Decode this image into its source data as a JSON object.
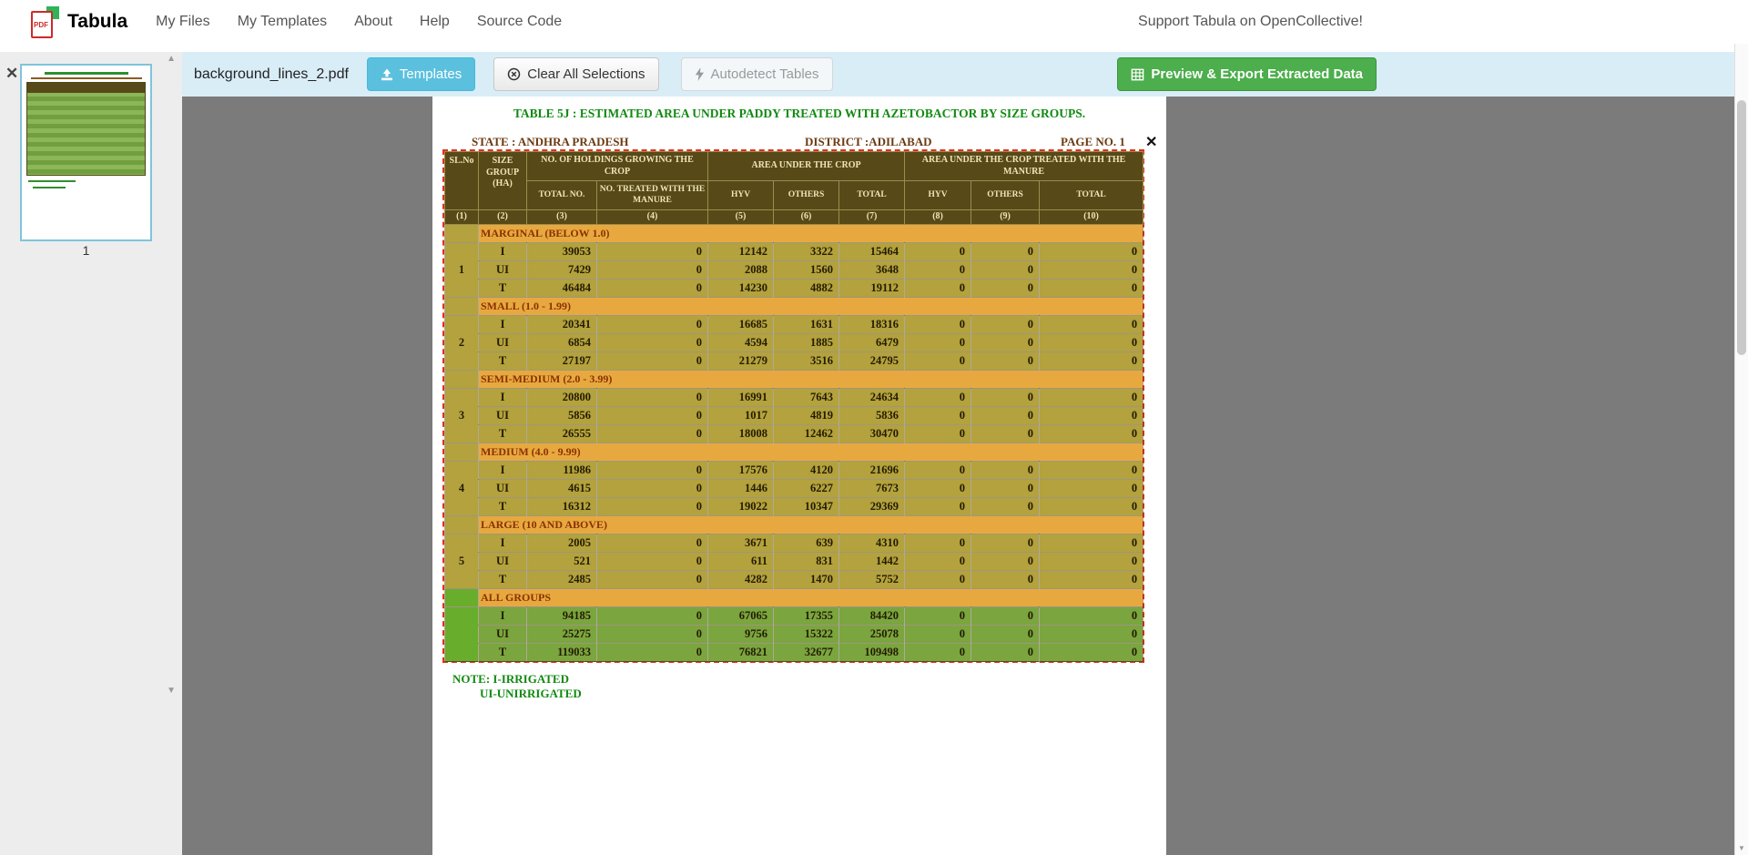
{
  "navbar": {
    "brand": "Tabula",
    "logo_pdf_text": "PDF",
    "items": [
      {
        "label": "My Files"
      },
      {
        "label": "My Templates"
      },
      {
        "label": "About"
      },
      {
        "label": "Help"
      },
      {
        "label": "Source Code"
      }
    ],
    "support_link": "Support Tabula on OpenCollective!"
  },
  "toolbar": {
    "filename": "background_lines_2.pdf",
    "templates": "Templates",
    "clear": "Clear All Selections",
    "autodetect": "Autodetect Tables",
    "export": "Preview & Export Extracted Data"
  },
  "sidebar": {
    "page_number": "1"
  },
  "document": {
    "title": "TABLE 5J : ESTIMATED AREA UNDER PADDY TREATED WITH AZETOBACTOR BY SIZE GROUPS.",
    "state_label": "STATE :",
    "state_value": "ANDHRA PRADESH",
    "district_label": "DISTRICT :",
    "district_value": "ADILABAD",
    "page_no": "PAGE NO. 1",
    "close_selection": "✕",
    "note1": "NOTE: I-IRRIGATED",
    "note2": "UI-UNIRRIGATED"
  },
  "table": {
    "headers": {
      "slno": "SL.No",
      "size_group": "SIZE GROUP (HA)",
      "holdings": "NO. OF HOLDINGS GROWING THE CROP",
      "area": "AREA UNDER THE CROP",
      "area_treated": "AREA UNDER THE CROP TREATED WITH THE MANURE",
      "total_no": "TOTAL NO.",
      "no_treated": "NO. TREATED WITH THE MANURE",
      "hyv": "HYV",
      "others": "OTHERS",
      "total": "TOTAL"
    },
    "col_numbers": [
      "(1)",
      "(2)",
      "(3)",
      "(4)",
      "(5)",
      "(6)",
      "(7)",
      "(8)",
      "(9)",
      "(10)"
    ],
    "groups": [
      {
        "slno": "1",
        "name": "MARGINAL (BELOW 1.0)",
        "rows": [
          {
            "label": "I",
            "values": [
              "39053",
              "0",
              "12142",
              "3322",
              "15464",
              "0",
              "0",
              "0"
            ]
          },
          {
            "label": "UI",
            "values": [
              "7429",
              "0",
              "2088",
              "1560",
              "3648",
              "0",
              "0",
              "0"
            ]
          },
          {
            "label": "T",
            "values": [
              "46484",
              "0",
              "14230",
              "4882",
              "19112",
              "0",
              "0",
              "0"
            ]
          }
        ]
      },
      {
        "slno": "2",
        "name": "SMALL (1.0 - 1.99)",
        "rows": [
          {
            "label": "I",
            "values": [
              "20341",
              "0",
              "16685",
              "1631",
              "18316",
              "0",
              "0",
              "0"
            ]
          },
          {
            "label": "UI",
            "values": [
              "6854",
              "0",
              "4594",
              "1885",
              "6479",
              "0",
              "0",
              "0"
            ]
          },
          {
            "label": "T",
            "values": [
              "27197",
              "0",
              "21279",
              "3516",
              "24795",
              "0",
              "0",
              "0"
            ]
          }
        ]
      },
      {
        "slno": "3",
        "name": "SEMI-MEDIUM (2.0 - 3.99)",
        "rows": [
          {
            "label": "I",
            "values": [
              "20800",
              "0",
              "16991",
              "7643",
              "24634",
              "0",
              "0",
              "0"
            ]
          },
          {
            "label": "UI",
            "values": [
              "5856",
              "0",
              "1017",
              "4819",
              "5836",
              "0",
              "0",
              "0"
            ]
          },
          {
            "label": "T",
            "values": [
              "26555",
              "0",
              "18008",
              "12462",
              "30470",
              "0",
              "0",
              "0"
            ]
          }
        ]
      },
      {
        "slno": "4",
        "name": "MEDIUM (4.0 - 9.99)",
        "rows": [
          {
            "label": "I",
            "values": [
              "11986",
              "0",
              "17576",
              "4120",
              "21696",
              "0",
              "0",
              "0"
            ]
          },
          {
            "label": "UI",
            "values": [
              "4615",
              "0",
              "1446",
              "6227",
              "7673",
              "0",
              "0",
              "0"
            ]
          },
          {
            "label": "T",
            "values": [
              "16312",
              "0",
              "19022",
              "10347",
              "29369",
              "0",
              "0",
              "0"
            ]
          }
        ]
      },
      {
        "slno": "5",
        "name": "LARGE (10 AND ABOVE)",
        "rows": [
          {
            "label": "I",
            "values": [
              "2005",
              "0",
              "3671",
              "639",
              "4310",
              "0",
              "0",
              "0"
            ]
          },
          {
            "label": "UI",
            "values": [
              "521",
              "0",
              "611",
              "831",
              "1442",
              "0",
              "0",
              "0"
            ]
          },
          {
            "label": "T",
            "values": [
              "2485",
              "0",
              "4282",
              "1470",
              "5752",
              "0",
              "0",
              "0"
            ]
          }
        ]
      },
      {
        "slno": "",
        "name": "ALL GROUPS",
        "rows": [
          {
            "label": "I",
            "values": [
              "94185",
              "0",
              "67065",
              "17355",
              "84420",
              "0",
              "0",
              "0"
            ]
          },
          {
            "label": "UI",
            "values": [
              "25275",
              "0",
              "9756",
              "15322",
              "25078",
              "0",
              "0",
              "0"
            ]
          },
          {
            "label": "T",
            "values": [
              "119033",
              "0",
              "76821",
              "32677",
              "109498",
              "0",
              "0",
              "0"
            ]
          }
        ]
      }
    ]
  }
}
